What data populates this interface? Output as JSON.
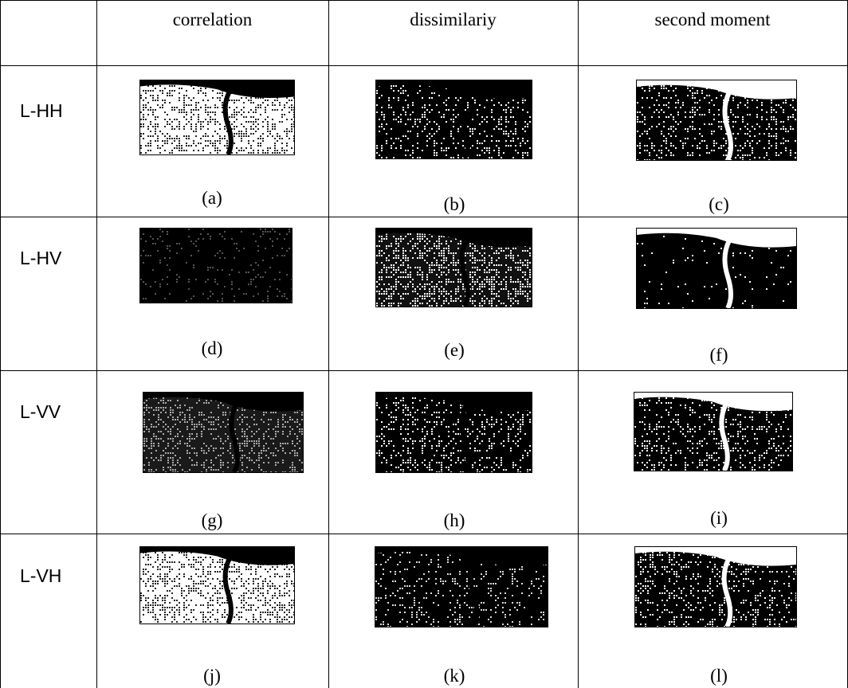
{
  "columns": [
    "correlation",
    "dissimilariy",
    "second moment"
  ],
  "rows": [
    {
      "label": "L-HH",
      "captions": [
        "(a)",
        "(b)",
        "(c)"
      ]
    },
    {
      "label": "L-HV",
      "captions": [
        "(d)",
        "(e)",
        "(f)"
      ]
    },
    {
      "label": "L-VV",
      "captions": [
        "(g)",
        "(h)",
        "(i)"
      ]
    },
    {
      "label": "L-VH",
      "captions": [
        "(j)",
        "(k)",
        "(l)"
      ]
    }
  ]
}
